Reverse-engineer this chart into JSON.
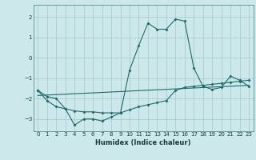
{
  "xlabel": "Humidex (Indice chaleur)",
  "bg_color": "#cce8ea",
  "grid_color": "#aacdd2",
  "line_color": "#1e6b6b",
  "xlim": [
    -0.5,
    23.5
  ],
  "ylim": [
    -3.6,
    2.6
  ],
  "xticks": [
    0,
    1,
    2,
    3,
    4,
    5,
    6,
    7,
    8,
    9,
    10,
    11,
    12,
    13,
    14,
    15,
    16,
    17,
    18,
    19,
    20,
    21,
    22,
    23
  ],
  "yticks": [
    -3,
    -2,
    -1,
    0,
    1,
    2
  ],
  "line1_x": [
    0,
    1,
    2,
    3,
    4,
    5,
    6,
    7,
    8,
    9,
    10,
    11,
    12,
    13,
    14,
    15,
    16,
    17,
    18,
    19,
    20,
    21,
    22,
    23
  ],
  "line1_y": [
    -1.6,
    -1.9,
    -2.0,
    -2.5,
    -3.3,
    -3.0,
    -3.0,
    -3.1,
    -2.9,
    -2.7,
    -0.6,
    0.6,
    1.7,
    1.4,
    1.4,
    1.9,
    1.8,
    -0.5,
    -1.4,
    -1.55,
    -1.45,
    -0.9,
    -1.1,
    -1.4
  ],
  "line2_x": [
    0,
    1,
    2,
    3,
    4,
    5,
    6,
    7,
    8,
    9,
    10,
    11,
    12,
    13,
    14,
    15,
    16,
    17,
    18,
    19,
    20,
    21,
    22,
    23
  ],
  "line2_y": [
    -1.6,
    -2.1,
    -2.4,
    -2.5,
    -2.6,
    -2.65,
    -2.65,
    -2.7,
    -2.7,
    -2.7,
    -2.55,
    -2.4,
    -2.3,
    -2.2,
    -2.1,
    -1.6,
    -1.45,
    -1.4,
    -1.35,
    -1.3,
    -1.25,
    -1.2,
    -1.15,
    -1.1
  ],
  "line3_x": [
    0,
    23
  ],
  "line3_y": [
    -1.85,
    -1.35
  ]
}
